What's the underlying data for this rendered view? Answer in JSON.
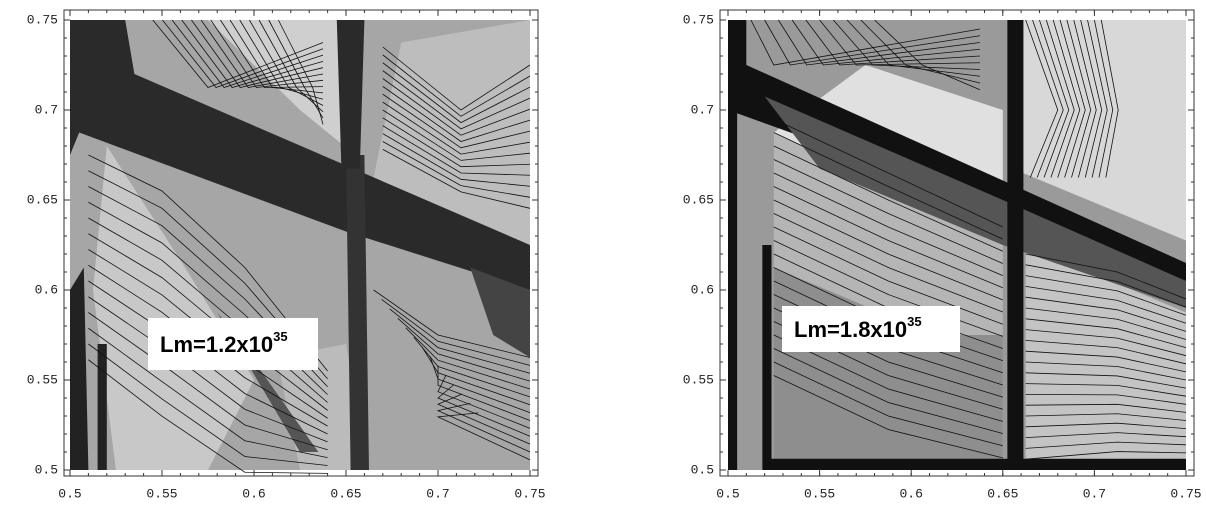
{
  "chart_data": [
    {
      "type": "contour",
      "xlim": [
        0.5,
        0.75
      ],
      "ylim": [
        0.5,
        0.75
      ],
      "xticks": [
        0.5,
        0.55,
        0.6,
        0.65,
        0.7,
        0.75
      ],
      "yticks": [
        0.5,
        0.55,
        0.6,
        0.65,
        0.7,
        0.75
      ],
      "annotation": "Lm=1.2x10",
      "annotation_exponent": "35"
    },
    {
      "type": "contour",
      "xlim": [
        0.5,
        0.75
      ],
      "ylim": [
        0.5,
        0.75
      ],
      "xticks": [
        0.5,
        0.55,
        0.6,
        0.65,
        0.7,
        0.75
      ],
      "yticks": [
        0.5,
        0.55,
        0.6,
        0.65,
        0.7,
        0.75
      ],
      "annotation": "Lm=1.8x10",
      "annotation_exponent": "35"
    }
  ]
}
